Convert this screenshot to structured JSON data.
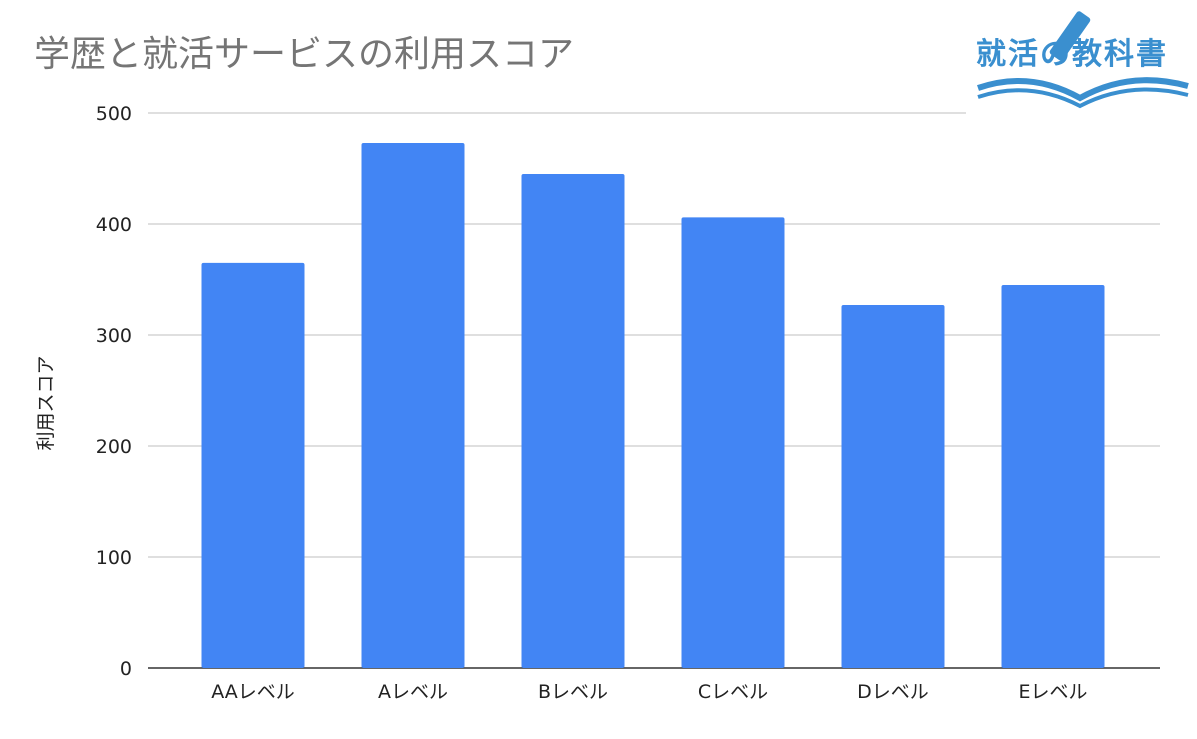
{
  "chart_data": {
    "type": "bar",
    "title": "学歴と就活サービスの利用スコア",
    "xlabel": "",
    "ylabel": "利用スコア",
    "categories": [
      "AAレベル",
      "Aレベル",
      "Bレベル",
      "Cレベル",
      "Dレベル",
      "Eレベル"
    ],
    "values": [
      365,
      473,
      445,
      406,
      327,
      345
    ],
    "ylim": [
      0,
      500
    ],
    "yticks": [
      "0",
      "100",
      "200",
      "300",
      "400",
      "500"
    ],
    "grid": true,
    "legend": "none",
    "bar_color": "#4285f4"
  },
  "logo": {
    "text": "就活の教科書",
    "color": "#3a8fcf"
  }
}
